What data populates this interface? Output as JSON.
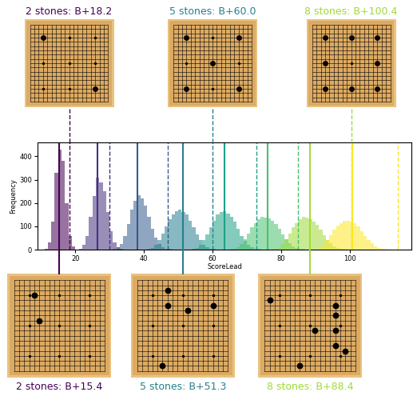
{
  "chart_data": {
    "type": "histogram",
    "x_label": "ScoreLead",
    "y_label": "Frequency",
    "xlim": [
      9,
      118
    ],
    "xticks": [
      20,
      40,
      60,
      80,
      100
    ],
    "ylim": [
      0,
      460
    ],
    "yticks": [
      0,
      100,
      200,
      300,
      400
    ],
    "grid": false,
    "board_size": 19,
    "series": [
      {
        "color": "#440154",
        "bins": [
          11,
          12,
          13,
          14,
          15,
          16,
          17,
          18,
          19,
          20
        ],
        "counts": [
          5,
          30,
          120,
          330,
          430,
          380,
          200,
          60,
          15
        ],
        "solid_line": 15.4,
        "dashed_line": 18.2,
        "dashed_board": {
          "title": "2 stones: B+18.2",
          "stones": [
            [
              3,
              3
            ],
            [
              15,
              15
            ]
          ]
        },
        "solid_board": {
          "title": "2 stones: B+15.4",
          "stones": [
            [
              4,
              3
            ],
            [
              5,
              8
            ]
          ]
        }
      },
      {
        "color": "#46327e",
        "bins": [
          21,
          22,
          23,
          24,
          25,
          26,
          27,
          28,
          29,
          30,
          31,
          32,
          33,
          34
        ],
        "counts": [
          5,
          20,
          60,
          140,
          230,
          310,
          290,
          250,
          160,
          80,
          30,
          10,
          3
        ],
        "solid_line": 26.5,
        "dashed_line": 30
      },
      {
        "color": "#365c8d",
        "bins": [
          31,
          32,
          33,
          34,
          35,
          36,
          37,
          38,
          39,
          40,
          41,
          42,
          43,
          44,
          45,
          46,
          47,
          48
        ],
        "counts": [
          3,
          10,
          25,
          60,
          110,
          170,
          210,
          235,
          220,
          190,
          140,
          90,
          50,
          25,
          10,
          4,
          2
        ],
        "solid_line": 38,
        "dashed_line": 47
      },
      {
        "color": "#277f8e",
        "bins": [
          41,
          42,
          43,
          44,
          45,
          46,
          47,
          48,
          49,
          50,
          51,
          52,
          53,
          54,
          55,
          56,
          57,
          58,
          59,
          60,
          61,
          62
        ],
        "counts": [
          3,
          8,
          20,
          40,
          70,
          100,
          130,
          150,
          165,
          170,
          160,
          150,
          125,
          95,
          65,
          40,
          22,
          10,
          5,
          2,
          1
        ],
        "solid_line": 51.3,
        "dashed_line": 60.0,
        "dashed_board": {
          "title": "5 stones: B+60.0",
          "stones": [
            [
              3,
              3
            ],
            [
              15,
              3
            ],
            [
              9,
              9
            ],
            [
              3,
              15
            ],
            [
              15,
              15
            ]
          ]
        },
        "solid_board": {
          "title": "5 stones: B+51.3",
          "stones": [
            [
              6,
              2
            ],
            [
              6,
              5
            ],
            [
              10,
              6
            ],
            [
              15,
              5
            ],
            [
              5,
              17
            ]
          ]
        }
      },
      {
        "color": "#1fa187",
        "bins": [
          54,
          55,
          56,
          57,
          58,
          59,
          60,
          61,
          62,
          63,
          64,
          65,
          66,
          67,
          68,
          69,
          70,
          71,
          72,
          73,
          74,
          75
        ],
        "counts": [
          3,
          8,
          20,
          40,
          65,
          95,
          125,
          150,
          160,
          165,
          155,
          140,
          120,
          90,
          60,
          38,
          20,
          10,
          5,
          2,
          1
        ],
        "solid_line": 63.5,
        "dashed_line": 72.8
      },
      {
        "color": "#4ac16d",
        "bins": [
          65,
          66,
          67,
          68,
          69,
          70,
          71,
          72,
          73,
          74,
          75,
          76,
          77,
          78,
          79,
          80,
          81,
          82,
          83,
          84,
          85,
          86,
          87,
          88
        ],
        "counts": [
          2,
          5,
          12,
          25,
          45,
          70,
          95,
          115,
          130,
          140,
          138,
          135,
          125,
          110,
          90,
          65,
          45,
          28,
          15,
          8,
          4,
          2,
          1
        ],
        "solid_line": 76,
        "dashed_line": 85
      },
      {
        "color": "#a0da39",
        "bins": [
          77,
          78,
          79,
          80,
          81,
          82,
          83,
          84,
          85,
          86,
          87,
          88,
          89,
          90,
          91,
          92,
          93,
          94,
          95,
          96,
          97,
          98,
          99,
          100
        ],
        "counts": [
          2,
          5,
          12,
          25,
          45,
          70,
          95,
          115,
          130,
          140,
          138,
          130,
          120,
          105,
          85,
          62,
          42,
          26,
          14,
          7,
          3,
          2,
          1
        ],
        "solid_line": 88.4,
        "dashed_line": 100.4,
        "dashed_board": {
          "title": "8 stones: B+100.4",
          "stones": [
            [
              3,
              3
            ],
            [
              9,
              3
            ],
            [
              15,
              3
            ],
            [
              3,
              9
            ],
            [
              15,
              9
            ],
            [
              3,
              15
            ],
            [
              9,
              15
            ],
            [
              15,
              15
            ]
          ]
        },
        "solid_board": {
          "title": "8 stones: B+88.4",
          "stones": [
            [
              1,
              4
            ],
            [
              14,
              5
            ],
            [
              14,
              7
            ],
            [
              10,
              10
            ],
            [
              14,
              10
            ],
            [
              14,
              13
            ],
            [
              16,
              14
            ],
            [
              7,
              17
            ]
          ]
        }
      },
      {
        "color": "#fde725",
        "bins": [
          89,
          90,
          91,
          92,
          93,
          94,
          95,
          96,
          97,
          98,
          99,
          100,
          101,
          102,
          103,
          104,
          105,
          106,
          107,
          108,
          109,
          110,
          111,
          112
        ],
        "counts": [
          2,
          5,
          10,
          22,
          40,
          62,
          85,
          103,
          115,
          122,
          125,
          120,
          112,
          98,
          80,
          60,
          42,
          27,
          15,
          8,
          4,
          2,
          1
        ],
        "solid_line": 100.8,
        "dashed_line": 114
      }
    ]
  }
}
